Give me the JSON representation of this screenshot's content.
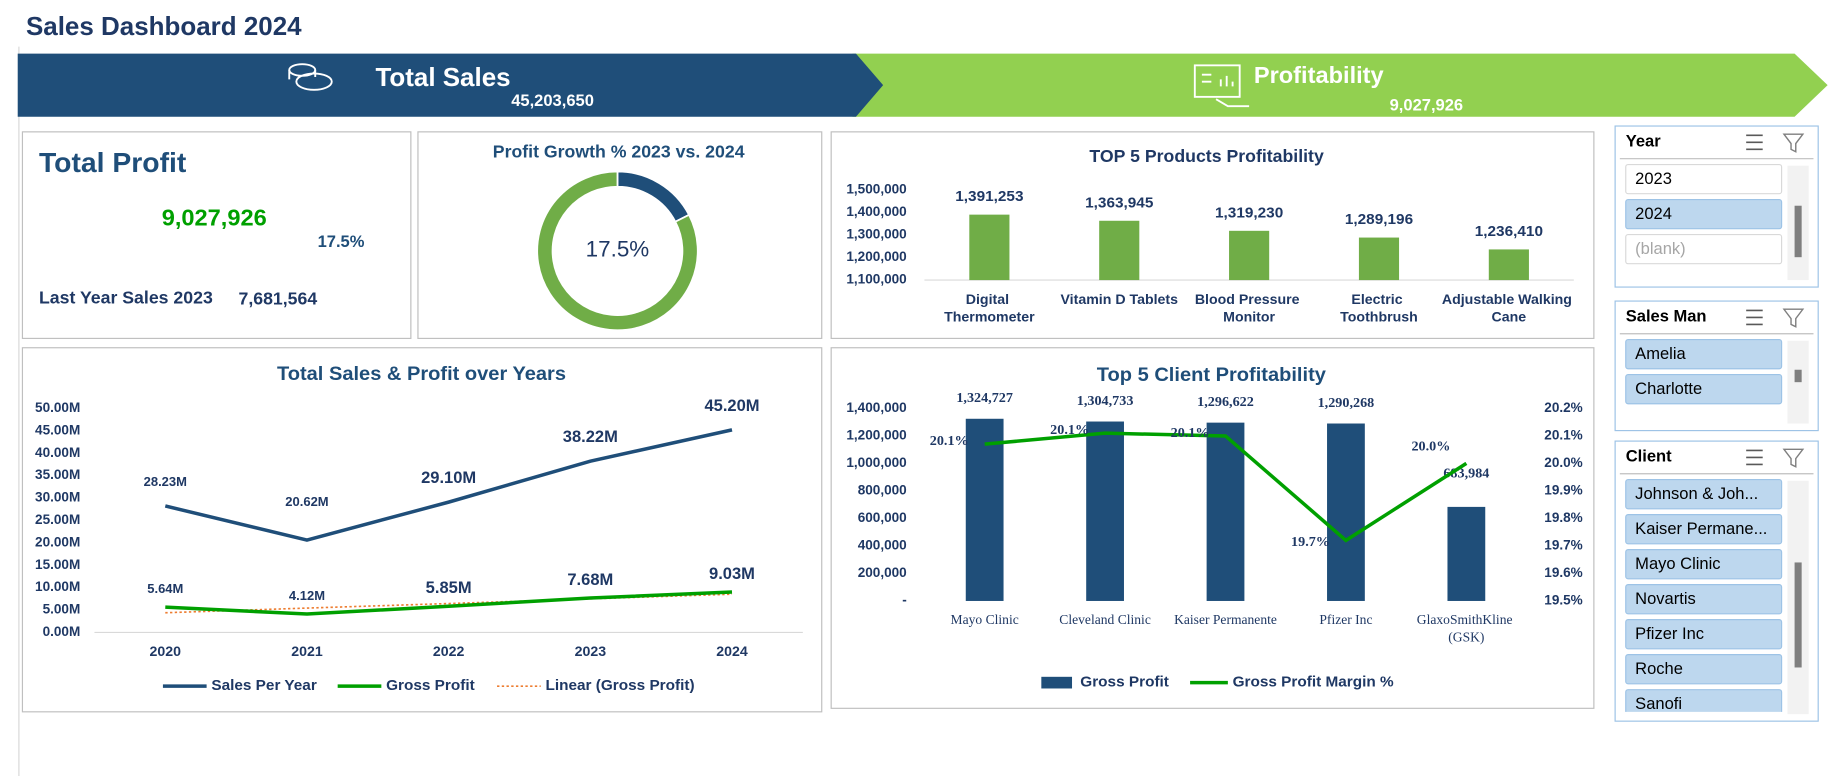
{
  "title": "Sales Dashboard 2024",
  "banners": [
    {
      "label": "Total Sales",
      "value": "45,203,650"
    },
    {
      "label": "Profitability",
      "value": "9,027,926"
    }
  ],
  "total_profit": {
    "title": "Total Profit",
    "value": "9,027,926",
    "growth": "17.5%",
    "last_year_label": "Last Year Sales 2023",
    "last_year_value": "7,681,564"
  },
  "slicers": [
    {
      "title": "Year",
      "items": [
        {
          "label": "2023",
          "state": "unselected"
        },
        {
          "label": "2024",
          "state": "selected"
        },
        {
          "label": "(blank)",
          "state": "no-data"
        }
      ]
    },
    {
      "title": "Sales Man",
      "items": [
        {
          "label": "Amelia",
          "state": "selected"
        },
        {
          "label": "Charlotte",
          "state": "selected"
        }
      ]
    },
    {
      "title": "Client",
      "items": [
        {
          "label": "Johnson & Joh...",
          "state": "selected"
        },
        {
          "label": "Kaiser Permane...",
          "state": "selected"
        },
        {
          "label": "Mayo Clinic",
          "state": "selected"
        },
        {
          "label": "Novartis",
          "state": "selected"
        },
        {
          "label": "Pfizer Inc",
          "state": "selected"
        },
        {
          "label": "Roche",
          "state": "selected"
        },
        {
          "label": "Sanofi",
          "state": "selected"
        }
      ]
    }
  ],
  "chart_data": [
    {
      "type": "donut",
      "title": "Profit Growth % 2023 vs. 2024",
      "center_label": "17.5%",
      "values": [
        17.5,
        82.5
      ],
      "colors": [
        "#1f4e79",
        "#70ad47"
      ]
    },
    {
      "type": "bar",
      "title": "TOP 5 Products Profitability",
      "categories": [
        "Digital Thermometer",
        "Vitamin D Tablets",
        "Blood Pressure Monitor",
        "Electric Toothbrush",
        "Adjustable Walking Cane"
      ],
      "values": [
        1391253,
        1363945,
        1319230,
        1289196,
        1236410
      ],
      "value_labels": [
        "1,391,253",
        "1,363,945",
        "1,319,230",
        "1,289,196",
        "1,236,410"
      ],
      "color": "#70ad47",
      "ylim": [
        1100000,
        1500000
      ],
      "yticks": [
        {
          "value": 1100000,
          "label": "1,100,000"
        },
        {
          "value": 1200000,
          "label": "1,200,000"
        },
        {
          "value": 1300000,
          "label": "1,300,000"
        },
        {
          "value": 1400000,
          "label": "1,400,000"
        },
        {
          "value": 1500000,
          "label": "1,500,000"
        }
      ]
    },
    {
      "type": "line",
      "title": "Total Sales & Profit over Years",
      "categories": [
        "2020",
        "2021",
        "2022",
        "2023",
        "2024"
      ],
      "series": [
        {
          "name": "Sales Per Year",
          "color": "#1f4e79",
          "style": "solid",
          "values": [
            28.23,
            20.62,
            29.1,
            38.22,
            45.2
          ],
          "value_labels": [
            "28.23M",
            "20.62M",
            "29.10M",
            "38.22M",
            "45.20M"
          ]
        },
        {
          "name": "Gross Profit",
          "color": "#00a000",
          "style": "solid",
          "values": [
            5.64,
            4.12,
            5.85,
            7.68,
            9.03
          ],
          "value_labels": [
            "5.64M",
            "4.12M",
            "5.85M",
            "7.68M",
            "9.03M"
          ]
        },
        {
          "name": "Linear (Gross Profit)",
          "color": "#ed7d31",
          "style": "dotted",
          "values": [
            4.4,
            5.43,
            6.46,
            7.5,
            8.53
          ]
        }
      ],
      "ylim": [
        0,
        50
      ],
      "yticks": [
        {
          "value": 0,
          "label": "0.00M"
        },
        {
          "value": 5,
          "label": "5.00M"
        },
        {
          "value": 10,
          "label": "10.00M"
        },
        {
          "value": 15,
          "label": "15.00M"
        },
        {
          "value": 20,
          "label": "20.00M"
        },
        {
          "value": 25,
          "label": "25.00M"
        },
        {
          "value": 30,
          "label": "30.00M"
        },
        {
          "value": 35,
          "label": "35.00M"
        },
        {
          "value": 40,
          "label": "40.00M"
        },
        {
          "value": 45,
          "label": "45.00M"
        },
        {
          "value": 50,
          "label": "50.00M"
        }
      ]
    },
    {
      "type": "combo",
      "title": "Top 5 Client Profitability",
      "categories": [
        "Mayo Clinic",
        "Cleveland Clinic",
        "Kaiser Permanente",
        "Pfizer Inc",
        "GlaxoSmithKline (GSK)"
      ],
      "series": [
        {
          "name": "Gross Profit",
          "color": "#1f4e79",
          "kind": "bar",
          "values": [
            1324727,
            1304733,
            1296622,
            1290268,
            683984
          ],
          "value_labels": [
            "1,324,727",
            "1,304,733",
            "1,296,622",
            "1,290,268",
            "683,984"
          ]
        },
        {
          "name": "Gross Profit Margin %",
          "color": "#00a000",
          "kind": "line",
          "axis": "y2",
          "values": [
            20.07,
            20.11,
            20.1,
            19.72,
            20.0
          ],
          "value_labels": [
            "20.1%",
            "20.1%",
            "20.1%",
            "19.7%",
            "20.0%"
          ]
        }
      ],
      "ylim": [
        0,
        1400000
      ],
      "yticks": [
        {
          "value": 0,
          "label": "-"
        },
        {
          "value": 200000,
          "label": "200,000"
        },
        {
          "value": 400000,
          "label": "400,000"
        },
        {
          "value": 600000,
          "label": "600,000"
        },
        {
          "value": 800000,
          "label": "800,000"
        },
        {
          "value": 1000000,
          "label": "1,000,000"
        },
        {
          "value": 1200000,
          "label": "1,200,000"
        },
        {
          "value": 1400000,
          "label": "1,400,000"
        }
      ],
      "y2lim": [
        19.5,
        20.2
      ],
      "y2ticks": [
        {
          "value": 19.5,
          "label": "19.5%"
        },
        {
          "value": 19.6,
          "label": "19.6%"
        },
        {
          "value": 19.7,
          "label": "19.7%"
        },
        {
          "value": 19.8,
          "label": "19.8%"
        },
        {
          "value": 19.9,
          "label": "19.9%"
        },
        {
          "value": 20.0,
          "label": "20.0%"
        },
        {
          "value": 20.1,
          "label": "20.1%"
        },
        {
          "value": 20.2,
          "label": "20.2%"
        }
      ]
    }
  ]
}
